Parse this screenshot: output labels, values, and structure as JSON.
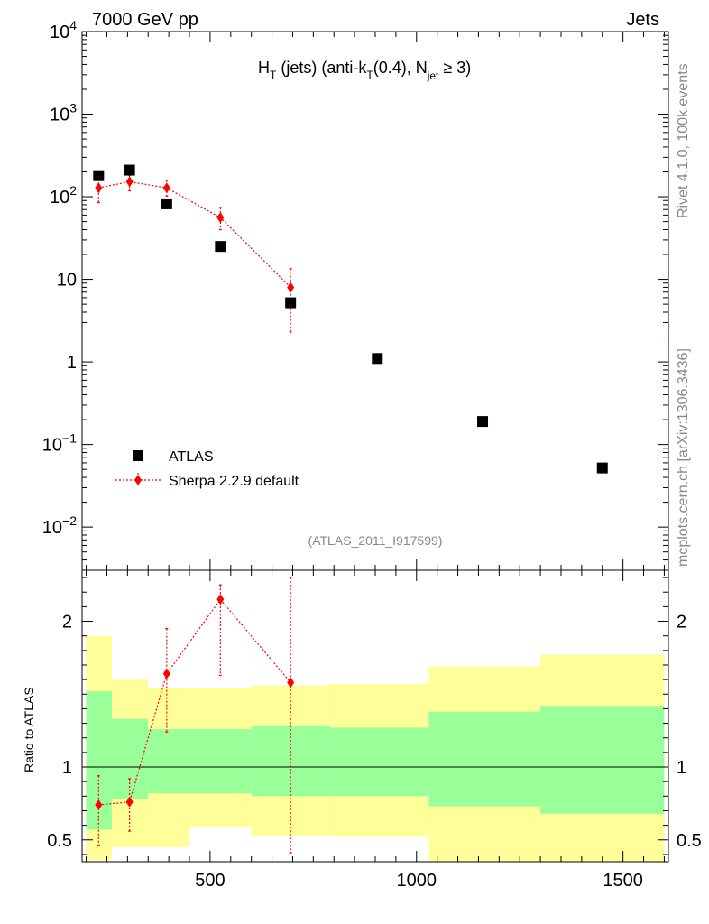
{
  "header": {
    "left": "7000 GeV pp",
    "right": "Jets",
    "side_top": "Rivet 4.1.0,  100k events",
    "side_bottom": "mcplots.cern.ch [arXiv:1306.3436]"
  },
  "chart_data": {
    "type": "scatter",
    "title": {
      "main": "H",
      "main_sub": "T",
      "part1": " (jets) (anti-k",
      "part1_sub": "T",
      "part2": "(0.4), N",
      "part2_sub": "jet",
      "part3": " ≥ 3)"
    },
    "watermark": "(ATLAS_2011_I917599)",
    "xlabel": "",
    "xlim": [
      190,
      1610
    ],
    "x_ticks": [
      "500",
      "1000",
      "1500"
    ],
    "main_y_log": true,
    "main_ylim": [
      0.003,
      10000
    ],
    "main_y_ticks": [
      {
        "base": "10",
        "exp": "4"
      },
      {
        "base": "10",
        "exp": "3"
      },
      {
        "base": "10",
        "exp": "2"
      },
      {
        "base": "10",
        "exp": ""
      },
      {
        "base": "1",
        "exp": ""
      },
      {
        "base": "10",
        "exp": "−1"
      },
      {
        "base": "10",
        "exp": "−2"
      }
    ],
    "legend": {
      "position": "bottom-left",
      "atlas": "ATLAS",
      "sherpa": "Sherpa 2.2.9 default"
    },
    "atlas": {
      "name": "ATLAS",
      "x": [
        230,
        305,
        395,
        525,
        695,
        905,
        1160,
        1450
      ],
      "y": [
        180,
        210,
        82,
        25,
        5.2,
        1.1,
        0.19,
        0.052
      ]
    },
    "sherpa": {
      "name": "Sherpa 2.2.9 default",
      "x": [
        230,
        305,
        395,
        525,
        695
      ],
      "y": [
        128,
        152,
        128,
        56,
        8
      ],
      "err_low": [
        85,
        118,
        102,
        40,
        2.3
      ],
      "err_high": [
        165,
        182,
        158,
        74,
        13.5
      ]
    },
    "ratio": {
      "ylabel": "Ratio to ATLAS",
      "ylim": [
        0.35,
        2.35
      ],
      "y_ticks": [
        "0.5",
        "1",
        "2"
      ],
      "bands": [
        {
          "x0": 200,
          "x1": 262,
          "y_lo": 0.36,
          "y_hi": 1.9,
          "g_lo": 0.57,
          "g_hi": 1.52
        },
        {
          "x0": 262,
          "x1": 350,
          "y_lo": 0.45,
          "y_hi": 1.6,
          "g_lo": 0.78,
          "g_hi": 1.33
        },
        {
          "x0": 350,
          "x1": 450,
          "y_lo": 0.45,
          "y_hi": 1.54,
          "g_lo": 0.82,
          "g_hi": 1.26
        },
        {
          "x0": 450,
          "x1": 600,
          "y_lo": 0.59,
          "y_hi": 1.54,
          "g_lo": 0.82,
          "g_hi": 1.26
        },
        {
          "x0": 600,
          "x1": 790,
          "y_lo": 0.53,
          "y_hi": 1.56,
          "g_lo": 0.8,
          "g_hi": 1.28
        },
        {
          "x0": 790,
          "x1": 1030,
          "y_lo": 0.52,
          "y_hi": 1.57,
          "g_lo": 0.8,
          "g_hi": 1.27
        },
        {
          "x0": 1030,
          "x1": 1300,
          "y_lo": 0.35,
          "y_hi": 1.69,
          "g_lo": 0.73,
          "g_hi": 1.38
        },
        {
          "x0": 1300,
          "x1": 1600,
          "y_lo": 0.35,
          "y_hi": 1.77,
          "g_lo": 0.68,
          "g_hi": 1.42
        }
      ],
      "sherpa": {
        "x": [
          230,
          305,
          395,
          525,
          695
        ],
        "y": [
          0.74,
          0.76,
          1.64,
          2.15,
          1.58
        ],
        "err_low": [
          0.46,
          0.56,
          1.24,
          1.63,
          0.41
        ],
        "err_high": [
          0.94,
          0.92,
          1.95,
          2.25,
          2.3
        ]
      }
    },
    "colors": {
      "data": "#000000",
      "mc": "#ff0000",
      "band_outer": "#ffff99",
      "band_inner": "#99ff99"
    }
  }
}
